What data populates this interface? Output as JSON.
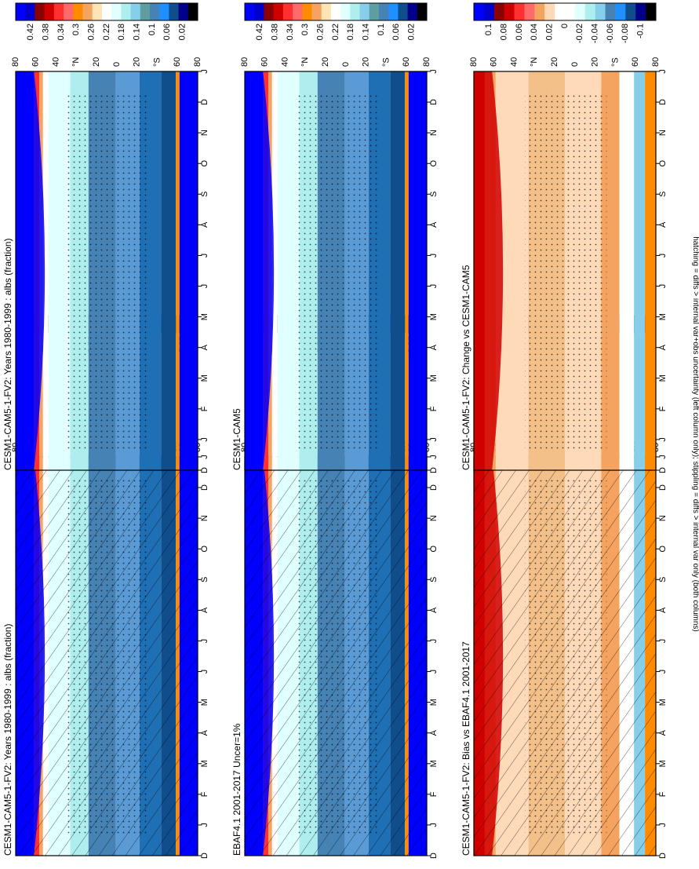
{
  "figure": {
    "footer": "hatching = diffs > internal var+obs uncertainty (left column only); stippling = diffs > internal var only (both columns)"
  },
  "months": [
    "D",
    "J",
    "F",
    "M",
    "A",
    "M",
    "J",
    "J",
    "A",
    "S",
    "O",
    "N",
    "D",
    "J"
  ],
  "lat_ticks": [
    "80",
    "60",
    "40",
    "°N",
    "20",
    "0",
    "20",
    "°S",
    "60",
    "80"
  ],
  "colors": {
    "abs_scale": [
      "#0000ff",
      "#0000cd",
      "#8b0000",
      "#d10000",
      "#ff3030",
      "#ff6a6a",
      "#ff8c00",
      "#f4a460",
      "#ffe4b5",
      "#ffffff",
      "#e0ffff",
      "#afeeee",
      "#87ceeb",
      "#5f9ea0",
      "#4682b4",
      "#1e90ff",
      "#104e8b",
      "#00008b",
      "#000000"
    ],
    "diff_scale": [
      "#0000ff",
      "#0000cd",
      "#8b0000",
      "#d10000",
      "#ff3030",
      "#ff6a6a",
      "#f4a460",
      "#ffdab9",
      "#ffffff",
      "#ffffff",
      "#e0ffff",
      "#afeeee",
      "#87ceeb",
      "#4682b4",
      "#1e90ff",
      "#104e8b",
      "#00008b",
      "#000000"
    ]
  },
  "chart_data": [
    {
      "type": "heatmap",
      "title": "CESM1-CAM5-1-FV2: Years 1980-1999 : albs (fraction)",
      "x": [
        "D",
        "J",
        "F",
        "M",
        "A",
        "M",
        "J",
        "J",
        "A",
        "S",
        "O",
        "N",
        "D",
        "J"
      ],
      "y": [
        "80",
        "60",
        "40",
        "°N",
        "20",
        "0",
        "20",
        "°S",
        "60",
        "80"
      ],
      "colorbar": [
        "0.42",
        "0.38",
        "0.34",
        "0.3",
        "0.26",
        "0.22",
        "0.18",
        "0.14",
        "0.1",
        "0.06",
        "0.02"
      ],
      "hatching": true,
      "stippling": true
    },
    {
      "type": "heatmap",
      "title": "CESM1-CAM5-1-FV2: Years 1980-1999 : albs (fraction)",
      "x": [
        "D",
        "J",
        "F",
        "M",
        "A",
        "M",
        "J",
        "J",
        "A",
        "S",
        "O",
        "N",
        "D",
        "J"
      ],
      "y": [
        "80",
        "60",
        "40",
        "°N",
        "20",
        "0",
        "20",
        "°S",
        "60",
        "80"
      ],
      "colorbar": [
        "0.42",
        "0.38",
        "0.34",
        "0.3",
        "0.26",
        "0.22",
        "0.18",
        "0.14",
        "0.1",
        "0.06",
        "0.02"
      ],
      "hatching": false,
      "stippling": true
    },
    {
      "type": "heatmap",
      "title": "EBAF4.1 2001-2017 Uncer=1%",
      "x": [
        "D",
        "J",
        "F",
        "M",
        "A",
        "M",
        "J",
        "J",
        "A",
        "S",
        "O",
        "N",
        "D",
        "J"
      ],
      "y": [
        "80",
        "60",
        "40",
        "°N",
        "20",
        "0",
        "20",
        "°S",
        "60",
        "80"
      ],
      "colorbar": [
        "0.42",
        "0.38",
        "0.34",
        "0.3",
        "0.26",
        "0.22",
        "0.18",
        "0.14",
        "0.1",
        "0.06",
        "0.02"
      ],
      "hatching": true,
      "stippling": true
    },
    {
      "type": "heatmap",
      "title": "CESM1-CAM5",
      "x": [
        "D",
        "J",
        "F",
        "M",
        "A",
        "M",
        "J",
        "J",
        "A",
        "S",
        "O",
        "N",
        "D",
        "J"
      ],
      "y": [
        "80",
        "60",
        "40",
        "°N",
        "20",
        "0",
        "20",
        "°S",
        "60",
        "80"
      ],
      "colorbar": [
        "0.42",
        "0.38",
        "0.34",
        "0.3",
        "0.26",
        "0.22",
        "0.18",
        "0.14",
        "0.1",
        "0.06",
        "0.02"
      ],
      "hatching": false,
      "stippling": true
    },
    {
      "type": "heatmap",
      "title": "CESM1-CAM5-1-FV2: Bias vs EBAF4.1 2001-2017",
      "x": [
        "D",
        "J",
        "F",
        "M",
        "A",
        "M",
        "J",
        "J",
        "A",
        "S",
        "O",
        "N",
        "D",
        "J"
      ],
      "y": [
        "80",
        "60",
        "40",
        "°N",
        "20",
        "0",
        "20",
        "°S",
        "60",
        "80"
      ],
      "colorbar": [
        "0.1",
        "0.08",
        "0.06",
        "0.04",
        "0.02",
        "0",
        "-0.02",
        "-0.04",
        "-0.06",
        "-0.08",
        "-0.1"
      ],
      "hatching": true,
      "stippling": true
    },
    {
      "type": "heatmap",
      "title": "CESM1-CAM5-1-FV2: Change vs CESM1-CAM5",
      "x": [
        "D",
        "J",
        "F",
        "M",
        "A",
        "M",
        "J",
        "J",
        "A",
        "S",
        "O",
        "N",
        "D",
        "J"
      ],
      "y": [
        "80",
        "60",
        "40",
        "°N",
        "20",
        "0",
        "20",
        "°S",
        "60",
        "80"
      ],
      "colorbar": [
        "0.1",
        "0.08",
        "0.06",
        "0.04",
        "0.02",
        "0",
        "-0.02",
        "-0.04",
        "-0.06",
        "-0.08",
        "-0.1"
      ],
      "hatching": false,
      "stippling": true
    }
  ]
}
